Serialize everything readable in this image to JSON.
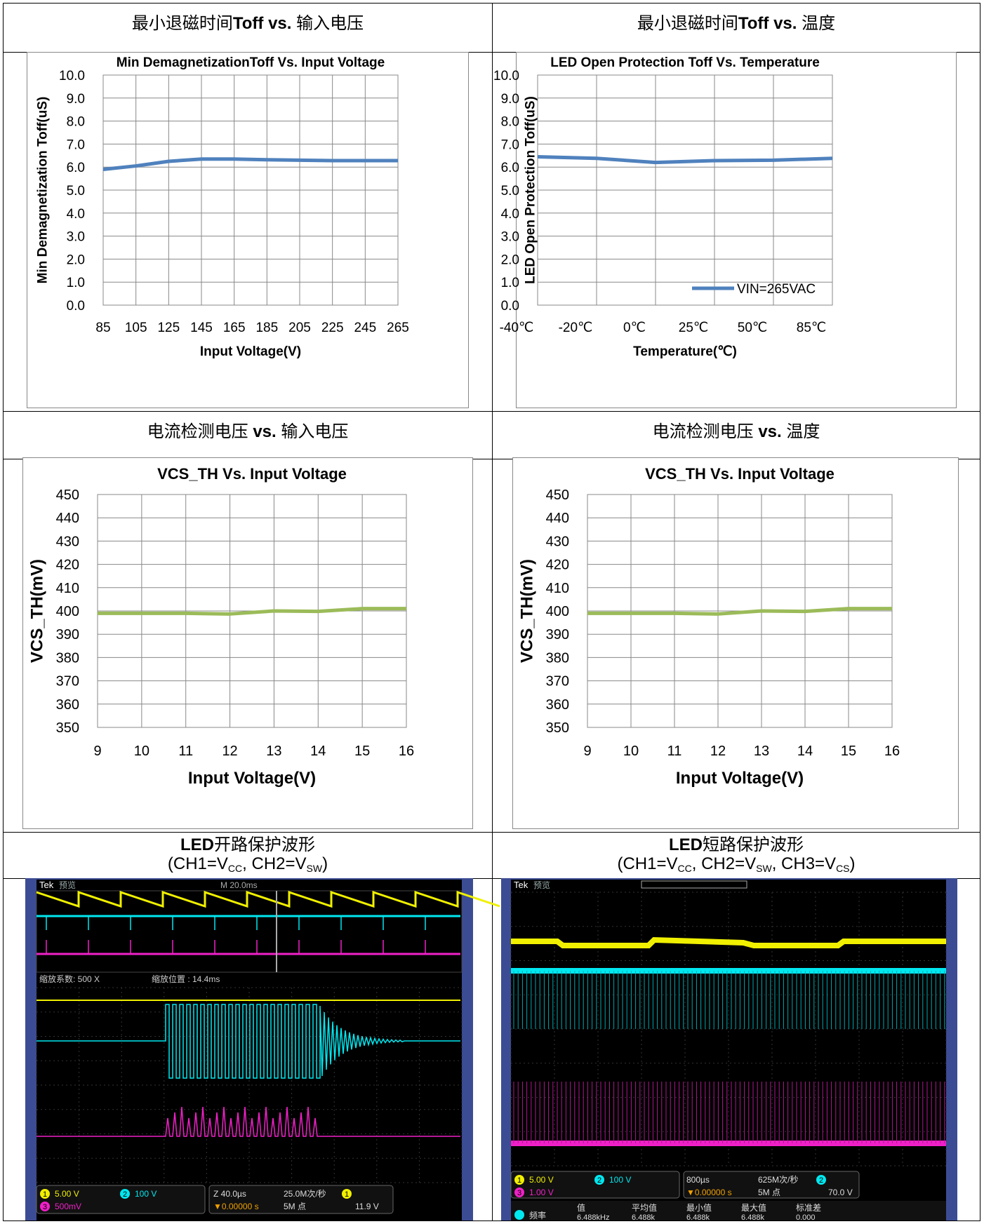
{
  "headers": {
    "r1c1": {
      "cn1": "最小退磁时间",
      "bold1": "Toff vs.",
      "cn2": " 输入电压"
    },
    "r1c2": {
      "cn1": "最小退磁时间",
      "bold1": "Toff vs.",
      "cn2": " 温度"
    },
    "r2c1": {
      "cn1": "电流检测电压 ",
      "bold1": "vs.",
      "cn2": " 输入电压"
    },
    "r2c2": {
      "cn1": "电流检测电压 ",
      "bold1": "vs.",
      "cn2": " 温度"
    },
    "r3c1": {
      "bold1": "LED",
      "cn1": "开路保护波形",
      "sub": "(CH1=V",
      "s1": "CC",
      "mid": ", CH2=V",
      "s2": "SW",
      "end": ")"
    },
    "r3c2": {
      "bold1": "LED",
      "cn1": "短路保护波形",
      "sub": "(CH1=V",
      "s1": "CC",
      "mid": ", CH2=V",
      "s2": "SW",
      "mid2": ", CH3=V",
      "s3": "CS",
      "end": ")"
    }
  },
  "chart_data": [
    {
      "type": "line",
      "title": "Min DemagnetizationToff Vs. Input Voltage",
      "xlabel": "Input Voltage(V)",
      "ylabel": "Min Demagnetization Toff(uS)",
      "categories": [
        "85",
        "105",
        "125",
        "145",
        "165",
        "185",
        "205",
        "225",
        "245",
        "265"
      ],
      "yticks": [
        "0.0",
        "1.0",
        "2.0",
        "3.0",
        "4.0",
        "5.0",
        "6.0",
        "7.0",
        "8.0",
        "9.0",
        "10.0"
      ],
      "ylim": [
        0,
        10
      ],
      "series": [
        {
          "values": [
            5.9,
            6.05,
            6.25,
            6.35,
            6.35,
            6.32,
            6.3,
            6.28,
            6.28,
            6.28
          ],
          "color": "#4f81bd"
        }
      ],
      "grid": true
    },
    {
      "type": "line",
      "title": "LED Open Protection Toff  Vs. Temperature",
      "xlabel": "Temperature(℃)",
      "ylabel": "LED Open Protection Toff(uS)",
      "categories": [
        "-40℃",
        "-20℃",
        "0℃",
        "25℃",
        "50℃",
        "85℃"
      ],
      "yticks": [
        "0.0",
        "1.0",
        "2.0",
        "3.0",
        "4.0",
        "5.0",
        "6.0",
        "7.0",
        "8.0",
        "9.0",
        "10.0"
      ],
      "ylim": [
        0,
        10
      ],
      "series": [
        {
          "name": "VIN=265VAC",
          "values": [
            6.45,
            6.38,
            6.2,
            6.28,
            6.3,
            6.38
          ],
          "color": "#4f81bd"
        }
      ],
      "legend": "bottom-right",
      "grid": true
    },
    {
      "type": "line",
      "title": "VCS_TH Vs. Input Voltage",
      "xlabel": "Input Voltage(V)",
      "ylabel": "VCS_TH(mV)",
      "categories": [
        "9",
        "10",
        "11",
        "12",
        "13",
        "14",
        "15",
        "16"
      ],
      "yticks": [
        "350",
        "360",
        "370",
        "380",
        "390",
        "400",
        "410",
        "420",
        "430",
        "440",
        "450"
      ],
      "ylim": [
        350,
        450
      ],
      "series": [
        {
          "values": [
            399,
            399,
            399,
            398.7,
            400,
            399.8,
            401,
            401
          ],
          "color": "#9bbb59"
        }
      ],
      "grid": true
    },
    {
      "type": "line",
      "title": "VCS_TH Vs. Input Voltage",
      "xlabel": "Input Voltage(V)",
      "ylabel": "VCS_TH(mV)",
      "categories": [
        "9",
        "10",
        "11",
        "12",
        "13",
        "14",
        "15",
        "16"
      ],
      "yticks": [
        "350",
        "360",
        "370",
        "380",
        "390",
        "400",
        "410",
        "420",
        "430",
        "440",
        "450"
      ],
      "ylim": [
        350,
        450
      ],
      "series": [
        {
          "values": [
            399,
            399,
            399,
            398.7,
            400,
            399.8,
            401,
            401
          ],
          "color": "#9bbb59"
        }
      ],
      "grid": true
    }
  ],
  "scope1": {
    "brand": "Tek",
    "mode": "预览",
    "timebase": "M 20.0ms",
    "zoom_factor": "缩放系数: 500 X",
    "zoom_pos": "缩放位置 : 14.4ms",
    "ch1": "5.00 V",
    "ch2": "100 V",
    "ch3": "500mV",
    "zoom": "Z 40.0µs",
    "trig_pos": "▼0.00000 s",
    "rate": "25.0M次/秒",
    "points": "5M 点",
    "trig_ch": "1",
    "trig_level": "11.9 V"
  },
  "scope2": {
    "brand": "Tek",
    "mode": "预览",
    "ch1": "5.00 V",
    "ch2": "100 V",
    "ch3": "1.00 V",
    "timebase": "800µs",
    "trig_pos": "▼0.00000 s",
    "rate": "625M次/秒",
    "points": "5M 点",
    "trig_ch": "2",
    "trig_level": "70.0 V",
    "meas_headers": [
      "值",
      "平均值",
      "最小值",
      "最大值",
      "标准差"
    ],
    "meas_label": "频率",
    "meas_values": [
      "6.488kHz",
      "6.488k",
      "6.488k",
      "6.488k",
      "0.000"
    ]
  },
  "colors": {
    "ch1": "#f0f000",
    "ch2": "#00e8f0",
    "ch3": "#f020c8",
    "blue_line": "#4f81bd",
    "green_line": "#9bbb59",
    "scope_frame": "#3c4c94"
  }
}
